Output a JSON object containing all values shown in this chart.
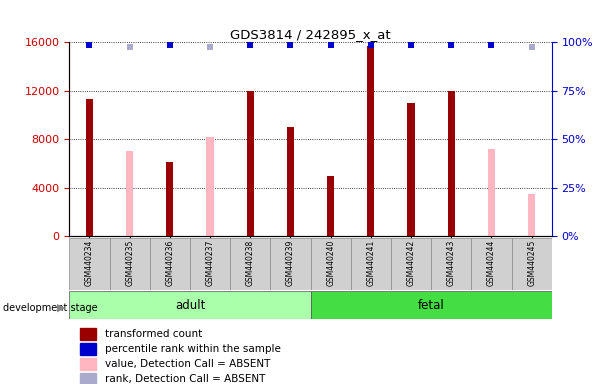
{
  "title": "GDS3814 / 242895_x_at",
  "samples": [
    "GSM440234",
    "GSM440235",
    "GSM440236",
    "GSM440237",
    "GSM440238",
    "GSM440239",
    "GSM440240",
    "GSM440241",
    "GSM440242",
    "GSM440243",
    "GSM440244",
    "GSM440245"
  ],
  "transformed_count": [
    11300,
    null,
    6100,
    null,
    12000,
    9000,
    5000,
    15700,
    11000,
    12000,
    null,
    null
  ],
  "absent_value": [
    null,
    7000,
    null,
    8200,
    null,
    null,
    null,
    null,
    null,
    null,
    7200,
    3500
  ],
  "rank_present": [
    100,
    null,
    100,
    null,
    100,
    100,
    100,
    100,
    100,
    100,
    100,
    null
  ],
  "rank_absent": [
    null,
    100,
    null,
    100,
    null,
    null,
    null,
    null,
    null,
    null,
    null,
    90
  ],
  "groups": [
    {
      "label": "adult",
      "start": 0,
      "end": 5,
      "color": "#aaffaa"
    },
    {
      "label": "fetal",
      "start": 6,
      "end": 11,
      "color": "#44dd44"
    }
  ],
  "ylim_left": [
    0,
    16000
  ],
  "ylim_right": [
    0,
    100
  ],
  "yticks_left": [
    0,
    4000,
    8000,
    12000,
    16000
  ],
  "yticks_right": [
    0,
    25,
    50,
    75,
    100
  ],
  "left_axis_color": "#cc0000",
  "right_axis_color": "#0000cc",
  "bar_color_present": "#990000",
  "bar_color_absent_value": "#ffb6c1",
  "rank_present_color": "#0000cc",
  "rank_absent_color": "#aaaacc",
  "dev_stage_label": "development stage",
  "legend_items": [
    {
      "label": "transformed count",
      "color": "#990000"
    },
    {
      "label": "percentile rank within the sample",
      "color": "#0000cc"
    },
    {
      "label": "value, Detection Call = ABSENT",
      "color": "#ffb6c1"
    },
    {
      "label": "rank, Detection Call = ABSENT",
      "color": "#aaaacc"
    }
  ]
}
